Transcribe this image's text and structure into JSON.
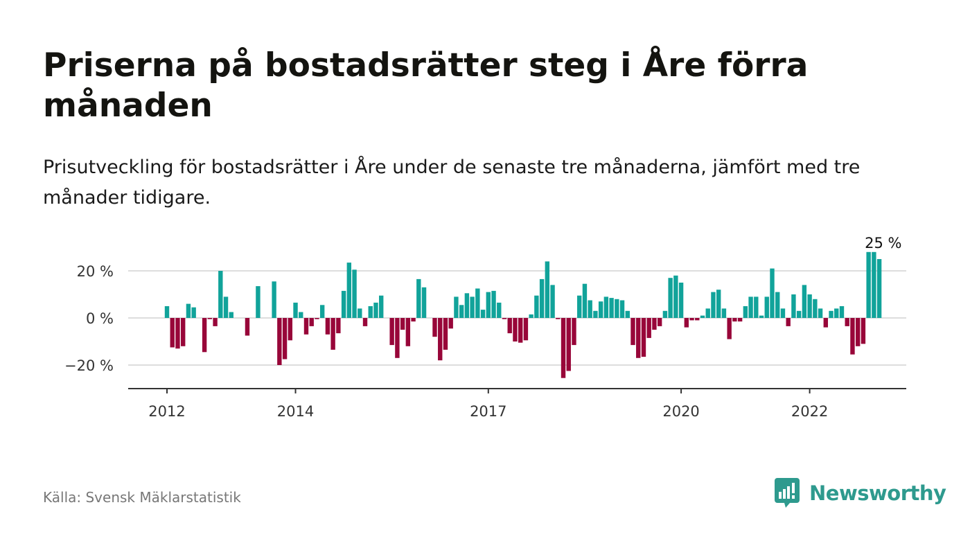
{
  "title": "Priserna på bostadsrätter steg i Åre förra månaden",
  "subtitle": "Prisutveckling för bostadsrätter i Åre under de senaste tre månaderna, jämfört med tre månader tidigare.",
  "source": "Källa: Svensk Mäklarstatistik",
  "logo": {
    "name": "Newsworthy",
    "icon": "newsworthy-logo-icon"
  },
  "colors": {
    "positive": "#11a39a",
    "negative": "#980639",
    "grid": "#dddddd",
    "axis": "#333333",
    "brand": "#2e9a8e"
  },
  "chart_data": {
    "type": "bar",
    "title": "Priserna på bostadsrätter steg i Åre förra månaden",
    "xlabel": "",
    "ylabel": "",
    "x_tick_labels": [
      "2012",
      "2014",
      "2017",
      "2020",
      "2022"
    ],
    "x_tick_years": [
      2012,
      2014,
      2017,
      2020,
      2022
    ],
    "y_ticks": [
      20,
      0,
      -20
    ],
    "y_tick_labels": [
      "20 %",
      "0 %",
      "−20 %"
    ],
    "ylim": [
      -30,
      30
    ],
    "grid": true,
    "annotation": {
      "text": "25 %",
      "date": "2023-03"
    },
    "start_date": "2012-01",
    "values": [
      5,
      -12.5,
      -13,
      -12,
      6,
      4.5,
      0,
      -14.5,
      -0.5,
      -3.5,
      20,
      9,
      2.5,
      0,
      0,
      -7.5,
      0,
      13.5,
      0,
      0,
      15.5,
      -20,
      -17.5,
      -9.5,
      6.5,
      2.5,
      -7,
      -3.5,
      -0.5,
      5.5,
      -7,
      -13.5,
      -6.5,
      11.5,
      23.5,
      20.5,
      4,
      -3.5,
      5,
      6.5,
      9.5,
      0,
      -11.5,
      -17,
      -5,
      -12,
      -1.5,
      16.5,
      13,
      0,
      -8,
      -18,
      -13.5,
      -4.5,
      9,
      5.5,
      10.5,
      9,
      12.5,
      3.5,
      11,
      11.5,
      6.5,
      -0.5,
      -6.5,
      -10,
      -10.5,
      -9.5,
      1.5,
      9.5,
      16.5,
      24,
      14,
      -0.5,
      -25.5,
      -22.5,
      -11.5,
      9.5,
      14.5,
      7.5,
      3,
      7,
      9,
      8.5,
      8,
      7.5,
      3,
      -11.5,
      -17,
      -16.5,
      -8.5,
      -5,
      -3.5,
      3,
      17,
      18,
      15,
      -4,
      -1,
      -1,
      1,
      4,
      11,
      12,
      4,
      -9,
      -1.5,
      -1.5,
      5,
      9,
      9,
      1,
      9,
      21,
      11,
      4,
      -3.5,
      10,
      3,
      14,
      10,
      8,
      4,
      -4,
      3,
      4,
      5,
      -3.5,
      -15.5,
      -12,
      -11,
      28,
      28,
      25
    ]
  }
}
